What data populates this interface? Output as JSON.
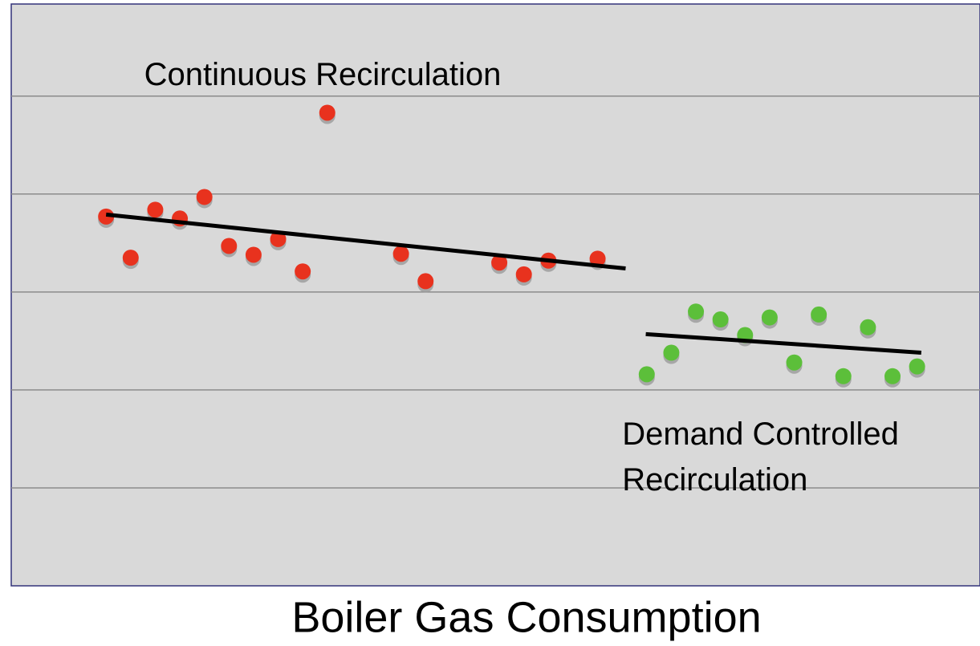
{
  "chart_data": {
    "type": "scatter",
    "title": "Boiler Gas Consumption",
    "xlim": [
      -3.86,
      35.56
    ],
    "ylim": [
      0,
      5.94
    ],
    "ygrid": [
      1,
      2,
      3,
      4,
      5
    ],
    "series": [
      {
        "color": "#e8321e",
        "x": [
          0,
          1,
          2,
          3,
          4,
          5,
          6,
          7,
          8,
          9,
          12,
          13,
          16,
          17,
          18,
          20
        ],
        "values": [
          3.77,
          3.35,
          3.84,
          3.75,
          3.97,
          3.47,
          3.38,
          3.54,
          3.21,
          4.83,
          3.39,
          3.11,
          3.3,
          3.18,
          3.32,
          3.34
        ]
      },
      {
        "color": "#5cbf3a",
        "x": [
          22,
          23,
          24,
          25,
          26,
          27,
          28,
          29,
          30,
          31,
          32,
          33
        ],
        "values": [
          2.16,
          2.38,
          2.8,
          2.72,
          2.56,
          2.74,
          2.28,
          2.77,
          2.14,
          2.64,
          2.14,
          2.24
        ]
      }
    ],
    "trend_lines": [
      {
        "color": "#000000",
        "x": [
          0,
          21.14
        ],
        "values": [
          3.79,
          3.24
        ]
      },
      {
        "color": "#000000",
        "x": [
          21.96,
          33.17
        ],
        "values": [
          2.57,
          2.38
        ]
      }
    ],
    "annotations": [
      {
        "lines": [
          "Continuous Recirculation"
        ],
        "x": 1.55,
        "y": 5.2
      },
      {
        "lines": [
          "Demand Controlled",
          "Recirculation"
        ],
        "x": 21.0,
        "y": 1.53
      }
    ]
  }
}
